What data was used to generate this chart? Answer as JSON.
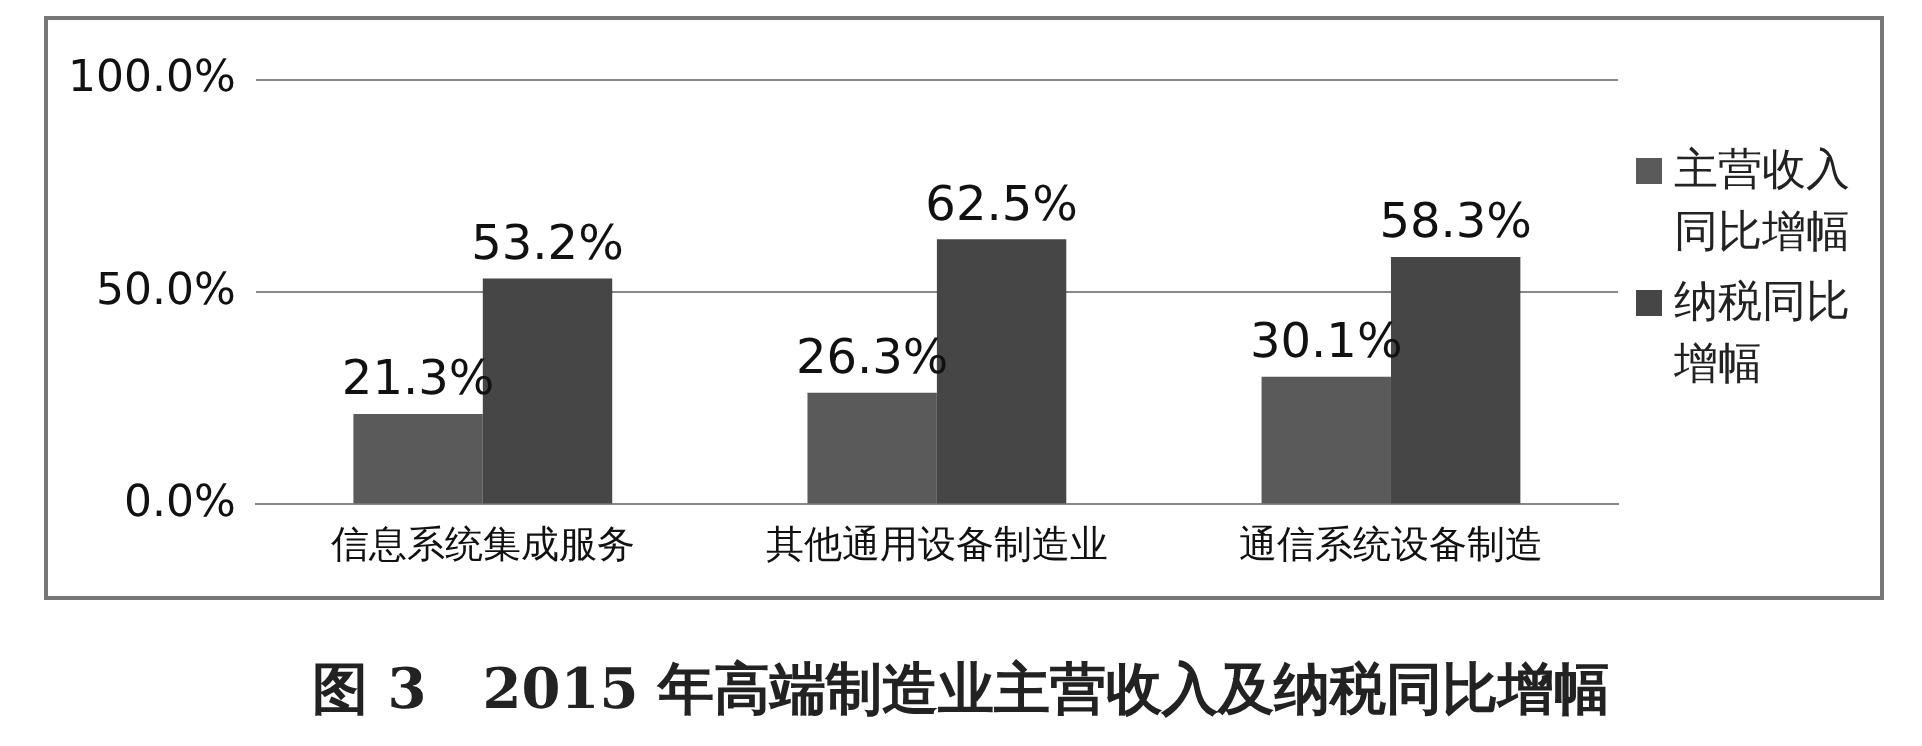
{
  "chart_data": {
    "type": "bar",
    "title": "图 3　2015 年高端制造业主营收入及纳税同比增幅",
    "categories": [
      "信息系统集成服务",
      "其他通用设备制造业",
      "通信系统设备制造"
    ],
    "series": [
      {
        "name": "主营收入同比增幅",
        "color": "#5a5a5a",
        "values": [
          21.3,
          26.3,
          30.1
        ],
        "value_labels": [
          "21.3%",
          "26.3%",
          "30.1%"
        ]
      },
      {
        "name": "纳税同比增幅",
        "color": "#464646",
        "values": [
          53.2,
          62.5,
          58.3
        ],
        "value_labels": [
          "53.2%",
          "62.5%",
          "58.3%"
        ]
      }
    ],
    "ylim": [
      0,
      100
    ],
    "yticks": [
      {
        "value": 0,
        "label": "0.0%"
      },
      {
        "value": 50,
        "label": "50.0%"
      },
      {
        "value": 100,
        "label": "100.0%"
      }
    ],
    "grid": "y",
    "legend": "right"
  }
}
